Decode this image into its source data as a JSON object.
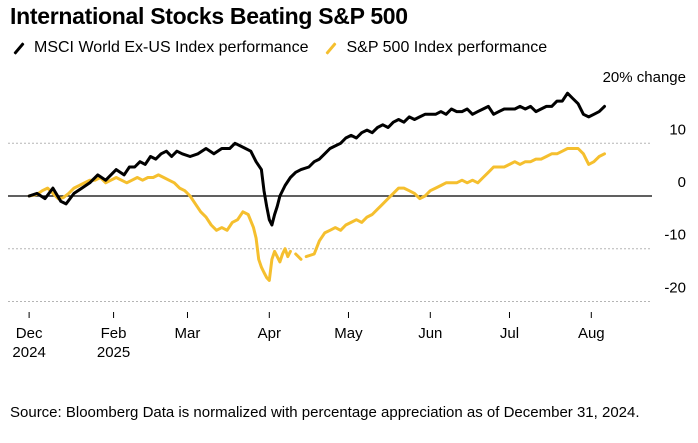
{
  "chart_data": {
    "type": "line",
    "title": "International Stocks Beating S&P 500",
    "unit_label": "20% change",
    "ylim": [
      -22,
      22
    ],
    "y_ticks": [
      10,
      0,
      -10,
      -20
    ],
    "y_tick_labels": [
      "10",
      "0",
      "-10",
      "-20"
    ],
    "x_ticks": [
      {
        "day": 0,
        "label": "Dec",
        "sub": "2024"
      },
      {
        "day": 32,
        "label": "Feb",
        "sub": "2025"
      },
      {
        "day": 60,
        "label": "Mar",
        "sub": ""
      },
      {
        "day": 91,
        "label": "Apr",
        "sub": ""
      },
      {
        "day": 121,
        "label": "May",
        "sub": ""
      },
      {
        "day": 152,
        "label": "Jun",
        "sub": ""
      },
      {
        "day": 182,
        "label": "Jul",
        "sub": ""
      },
      {
        "day": 213,
        "label": "Aug",
        "sub": ""
      }
    ],
    "xlim": [
      -8,
      236
    ],
    "series": [
      {
        "name": "MSCI World Ex-US Index performance",
        "color": "#000000",
        "points": [
          [
            0,
            0
          ],
          [
            3,
            0.5
          ],
          [
            6,
            -0.5
          ],
          [
            9,
            1.5
          ],
          [
            12,
            -1
          ],
          [
            14,
            -1.5
          ],
          [
            17,
            0.5
          ],
          [
            20,
            1.5
          ],
          [
            23,
            2.5
          ],
          [
            26,
            4
          ],
          [
            29,
            3
          ],
          [
            31,
            4
          ],
          [
            33,
            5
          ],
          [
            36,
            4
          ],
          [
            38,
            5.5
          ],
          [
            40,
            5.5
          ],
          [
            42,
            6.5
          ],
          [
            44,
            6
          ],
          [
            46,
            7.5
          ],
          [
            48,
            7
          ],
          [
            50,
            8
          ],
          [
            52,
            8.5
          ],
          [
            54,
            7.5
          ],
          [
            56,
            8.5
          ],
          [
            58,
            8
          ],
          [
            61,
            7.5
          ],
          [
            64,
            8
          ],
          [
            67,
            9
          ],
          [
            70,
            8
          ],
          [
            73,
            9
          ],
          [
            76,
            9
          ],
          [
            78,
            10
          ],
          [
            80,
            9.5
          ],
          [
            82,
            9
          ],
          [
            84,
            8.5
          ],
          [
            86,
            6.5
          ],
          [
            88,
            5
          ],
          [
            89,
            1
          ],
          [
            90,
            -2
          ],
          [
            91,
            -4.5
          ],
          [
            92,
            -5.5
          ],
          [
            93,
            -3.5
          ],
          [
            94,
            -2
          ],
          [
            95,
            0
          ],
          [
            97,
            2
          ],
          [
            99,
            3.5
          ],
          [
            101,
            4.5
          ],
          [
            103,
            5
          ],
          [
            106,
            5.5
          ],
          [
            108,
            6.5
          ],
          [
            110,
            7
          ],
          [
            112,
            8
          ],
          [
            114,
            9
          ],
          [
            116,
            9.5
          ],
          [
            118,
            10
          ],
          [
            120,
            11
          ],
          [
            122,
            11.5
          ],
          [
            124,
            11
          ],
          [
            126,
            12
          ],
          [
            128,
            12.5
          ],
          [
            130,
            12
          ],
          [
            132,
            13
          ],
          [
            134,
            13.5
          ],
          [
            136,
            13
          ],
          [
            138,
            14
          ],
          [
            140,
            14.5
          ],
          [
            142,
            14
          ],
          [
            144,
            15
          ],
          [
            146,
            14.5
          ],
          [
            148,
            15
          ],
          [
            150,
            15.5
          ],
          [
            152,
            15.5
          ],
          [
            154,
            15.5
          ],
          [
            156,
            16
          ],
          [
            158,
            15.5
          ],
          [
            160,
            16.5
          ],
          [
            162,
            16
          ],
          [
            164,
            16
          ],
          [
            166,
            16.5
          ],
          [
            168,
            15.5
          ],
          [
            170,
            16
          ],
          [
            172,
            16.5
          ],
          [
            174,
            17
          ],
          [
            176,
            15.5
          ],
          [
            178,
            16
          ],
          [
            180,
            16.5
          ],
          [
            182,
            16.5
          ],
          [
            184,
            16.5
          ],
          [
            186,
            17
          ],
          [
            188,
            16.5
          ],
          [
            190,
            17
          ],
          [
            192,
            16
          ],
          [
            194,
            16.5
          ],
          [
            196,
            17
          ],
          [
            198,
            17
          ],
          [
            200,
            18
          ],
          [
            202,
            18
          ],
          [
            204,
            19.5
          ],
          [
            206,
            18.5
          ],
          [
            208,
            17.5
          ],
          [
            210,
            15.5
          ],
          [
            212,
            15
          ],
          [
            214,
            15.5
          ],
          [
            216,
            16
          ],
          [
            218,
            17
          ]
        ]
      },
      {
        "name": "S&P 500 Index performance",
        "color": "#f5bf2e",
        "points": [
          [
            0,
            0
          ],
          [
            3,
            0.3
          ],
          [
            5,
            1
          ],
          [
            7,
            1.5
          ],
          [
            9,
            0.5
          ],
          [
            11,
            -0.5
          ],
          [
            13,
            -0.3
          ],
          [
            15,
            0.5
          ],
          [
            17,
            1.5
          ],
          [
            19,
            2
          ],
          [
            21,
            2.5
          ],
          [
            23,
            3
          ],
          [
            25,
            3
          ],
          [
            27,
            3.5
          ],
          [
            29,
            2.5
          ],
          [
            31,
            3
          ],
          [
            33,
            3.5
          ],
          [
            35,
            3
          ],
          [
            37,
            2.5
          ],
          [
            39,
            3
          ],
          [
            41,
            3.5
          ],
          [
            43,
            3
          ],
          [
            45,
            3.5
          ],
          [
            47,
            3.5
          ],
          [
            49,
            4
          ],
          [
            51,
            3.5
          ],
          [
            53,
            3
          ],
          [
            55,
            2.5
          ],
          [
            57,
            1.5
          ],
          [
            59,
            1
          ],
          [
            61,
            0
          ],
          [
            63,
            -1.5
          ],
          [
            65,
            -3
          ],
          [
            67,
            -4
          ],
          [
            69,
            -5.5
          ],
          [
            71,
            -6.5
          ],
          [
            73,
            -6
          ],
          [
            75,
            -6.5
          ],
          [
            77,
            -5
          ],
          [
            79,
            -4.5
          ],
          [
            81,
            -3
          ],
          [
            83,
            -3.5
          ],
          [
            85,
            -6
          ],
          [
            86,
            -8
          ],
          [
            87,
            -12
          ],
          [
            88,
            -13.5
          ],
          [
            89,
            -14.5
          ],
          [
            90,
            -15.5
          ],
          [
            91,
            -16
          ],
          [
            92,
            -12
          ],
          [
            93,
            -10.5
          ],
          [
            95,
            -12.5
          ],
          [
            96,
            -11
          ],
          [
            97,
            -10
          ],
          [
            98,
            -11.5
          ],
          [
            99,
            -10.5
          ],
          [
            101,
            -11
          ],
          [
            103,
            -12
          ],
          [
            105,
            -11.5
          ],
          [
            108,
            -11
          ],
          [
            110,
            -8.5
          ],
          [
            112,
            -7
          ],
          [
            114,
            -6.5
          ],
          [
            116,
            -6
          ],
          [
            118,
            -6.5
          ],
          [
            120,
            -5.5
          ],
          [
            122,
            -5
          ],
          [
            124,
            -4.5
          ],
          [
            126,
            -5
          ],
          [
            128,
            -4
          ],
          [
            130,
            -3.5
          ],
          [
            132,
            -2.5
          ],
          [
            134,
            -1.5
          ],
          [
            136,
            -0.5
          ],
          [
            138,
            0.5
          ],
          [
            140,
            1.5
          ],
          [
            142,
            1.5
          ],
          [
            144,
            1
          ],
          [
            146,
            0.5
          ],
          [
            148,
            -0.5
          ],
          [
            150,
            0
          ],
          [
            152,
            1
          ],
          [
            154,
            1.5
          ],
          [
            156,
            2
          ],
          [
            158,
            2.5
          ],
          [
            160,
            2.5
          ],
          [
            162,
            2.5
          ],
          [
            164,
            3
          ],
          [
            166,
            2.5
          ],
          [
            168,
            3
          ],
          [
            170,
            2.5
          ],
          [
            172,
            3.5
          ],
          [
            174,
            4.5
          ],
          [
            176,
            5.5
          ],
          [
            178,
            5.5
          ],
          [
            180,
            5.5
          ],
          [
            182,
            6
          ],
          [
            184,
            6.5
          ],
          [
            186,
            6
          ],
          [
            188,
            6.5
          ],
          [
            190,
            6.5
          ],
          [
            192,
            7
          ],
          [
            194,
            7
          ],
          [
            196,
            7.5
          ],
          [
            198,
            8
          ],
          [
            200,
            8
          ],
          [
            202,
            8.5
          ],
          [
            204,
            9
          ],
          [
            206,
            9
          ],
          [
            208,
            9
          ],
          [
            210,
            8
          ],
          [
            212,
            6
          ],
          [
            214,
            6.5
          ],
          [
            216,
            7.5
          ],
          [
            218,
            8
          ]
        ]
      }
    ],
    "gaps": [
      {
        "series": 1,
        "after_day": 99
      },
      {
        "series": 1,
        "after_day": 103
      }
    ]
  },
  "source": "Source: Bloomberg Data is normalized with percentage appreciation as of December 31, 2024."
}
